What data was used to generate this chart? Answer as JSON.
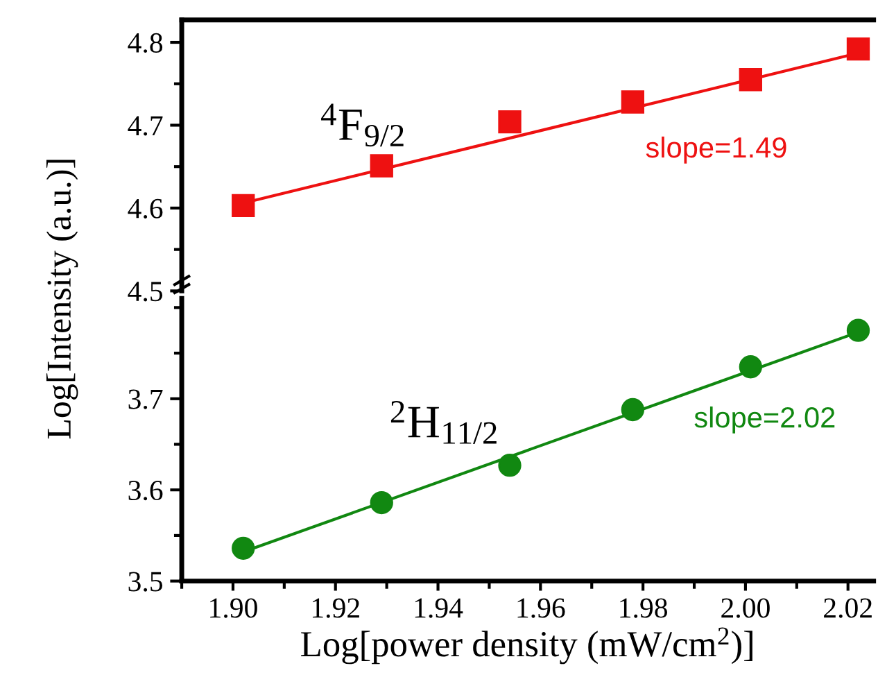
{
  "chart_data": [
    {
      "type": "line",
      "xlim": [
        1.89,
        2.025
      ],
      "ylim": [
        4.5,
        4.827
      ],
      "yticks": [
        {
          "value": 4.5,
          "label": "4.5"
        },
        {
          "value": 4.6,
          "label": "4.6"
        },
        {
          "value": 4.7,
          "label": "4.7"
        },
        {
          "value": 4.8,
          "label": "4.8"
        }
      ],
      "tick_labels": "y",
      "legend": false,
      "grid": false,
      "series": [
        {
          "type": "scatter",
          "color": "#ee1111",
          "marker": "square",
          "x": [
            1.902,
            1.929,
            1.954,
            1.978,
            2.001,
            2.022
          ],
          "values": [
            4.603,
            4.651,
            4.704,
            4.728,
            4.755,
            4.792
          ]
        },
        {
          "color": "#ee1111",
          "marker": "none",
          "x": [
            1.902,
            2.022
          ],
          "values": [
            4.606,
            4.787
          ]
        }
      ],
      "annotations": [
        "$^{4}$F$_{9/2}$",
        "slope=1.49"
      ]
    },
    {
      "type": "line",
      "xlim": [
        1.89,
        2.025
      ],
      "ylim": [
        3.5,
        3.81
      ],
      "xticks": [
        {
          "value": 1.9,
          "label": "1.90"
        },
        {
          "value": 1.92,
          "label": "1.92"
        },
        {
          "value": 1.94,
          "label": "1.94"
        },
        {
          "value": 1.96,
          "label": "1.96"
        },
        {
          "value": 1.98,
          "label": "1.98"
        },
        {
          "value": 2.0,
          "label": "2.00"
        },
        {
          "value": 2.02,
          "label": "2.02"
        }
      ],
      "yticks": [
        {
          "value": 3.5,
          "label": "3.5"
        },
        {
          "value": 3.6,
          "label": "3.6"
        },
        {
          "value": 3.7,
          "label": "3.7"
        }
      ],
      "xlabel": "Log[power density (mW/cm$^{2}$)]",
      "ylabel": "Log[Intensity (a.u.)]",
      "legend": false,
      "grid": false,
      "series": [
        {
          "type": "scatter",
          "color": "#118811",
          "marker": "circle",
          "x": [
            1.902,
            1.929,
            1.954,
            1.978,
            2.001,
            2.022
          ],
          "values": [
            3.536,
            3.586,
            3.627,
            3.688,
            3.735,
            3.775
          ]
        },
        {
          "color": "#118811",
          "marker": "none",
          "x": [
            1.902,
            2.022
          ],
          "values": [
            3.532,
            3.773
          ]
        }
      ],
      "annotations": [
        "$^{2}$H$_{11/2}$",
        "slope=2.02"
      ]
    }
  ]
}
